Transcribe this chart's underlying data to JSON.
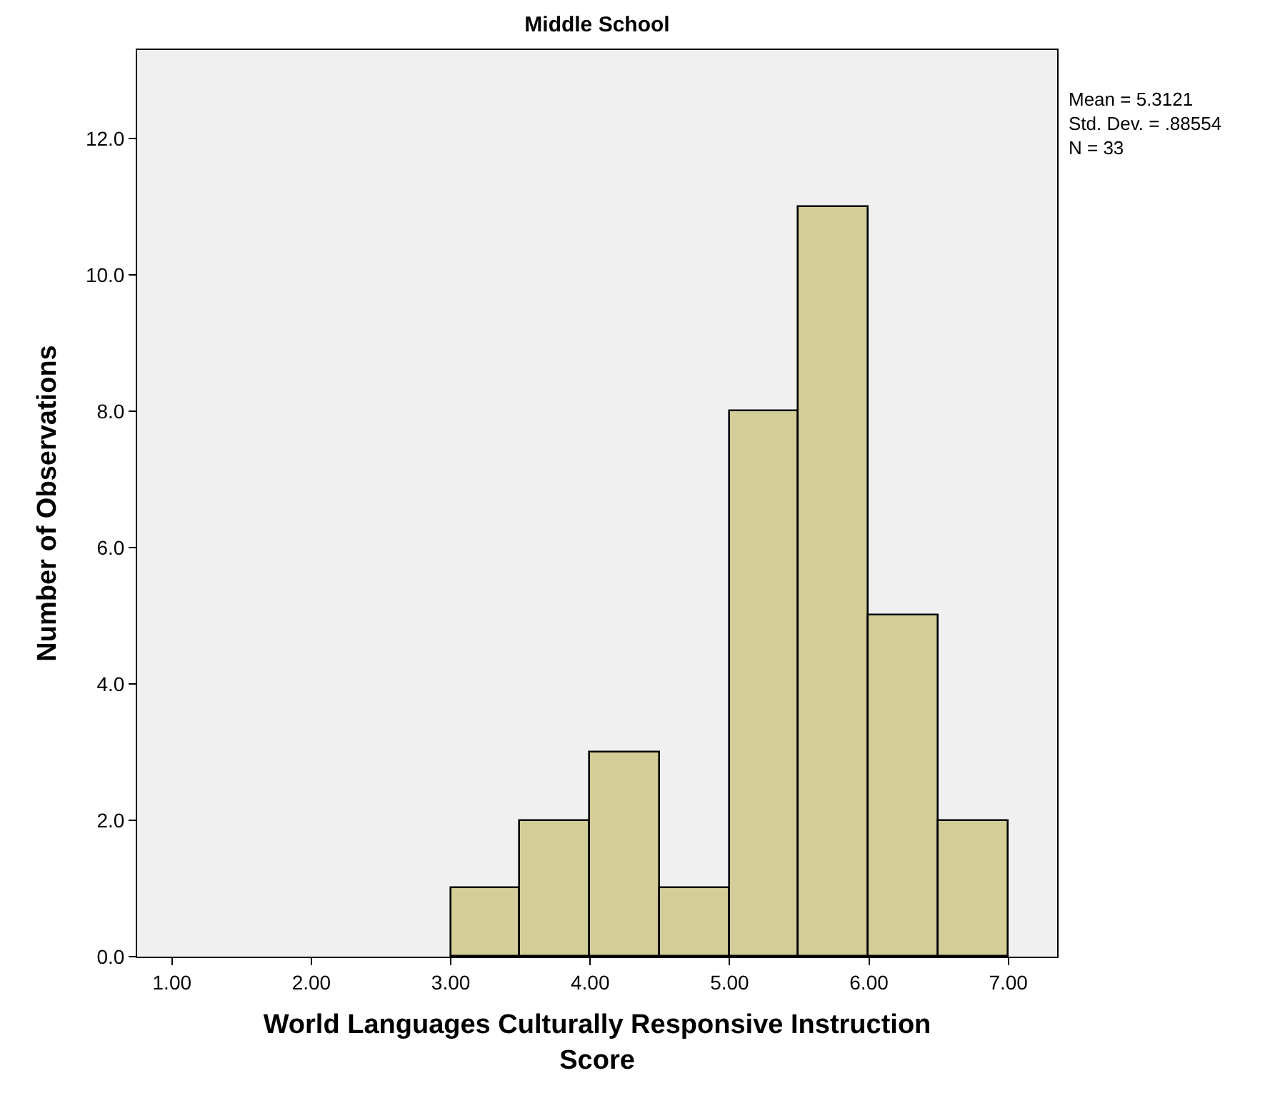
{
  "chart_data": {
    "type": "histogram",
    "title": "Middle School",
    "xlabel": "World Languages Culturally Responsive Instruction\nScore",
    "ylabel": "Number of Observations",
    "bins": [
      3.0,
      3.5,
      4.0,
      4.5,
      5.0,
      5.5,
      6.0,
      6.5,
      7.0
    ],
    "values": [
      1,
      2,
      3,
      1,
      8,
      11,
      5,
      2
    ],
    "color": "#d3ce97",
    "xlim": [
      0.75,
      7.35
    ],
    "xticks": [
      {
        "value": 1,
        "label": "1.00"
      },
      {
        "value": 2,
        "label": "2.00"
      },
      {
        "value": 3,
        "label": "3.00"
      },
      {
        "value": 4,
        "label": "4.00"
      },
      {
        "value": 5,
        "label": "5.00"
      },
      {
        "value": 6,
        "label": "6.00"
      },
      {
        "value": 7,
        "label": "7.00"
      }
    ],
    "ylim": [
      0,
      13.3
    ],
    "yticks": [
      {
        "value": 0,
        "label": "0.0"
      },
      {
        "value": 2,
        "label": "2.0"
      },
      {
        "value": 4,
        "label": "4.0"
      },
      {
        "value": 6,
        "label": "6.0"
      },
      {
        "value": 8,
        "label": "8.0"
      },
      {
        "value": 10,
        "label": "10.0"
      },
      {
        "value": 12,
        "label": "12.0"
      }
    ],
    "annotations": [
      "Mean = 5.3121",
      "Std. Dev. = .88554",
      "N = 33"
    ],
    "grid": false
  }
}
